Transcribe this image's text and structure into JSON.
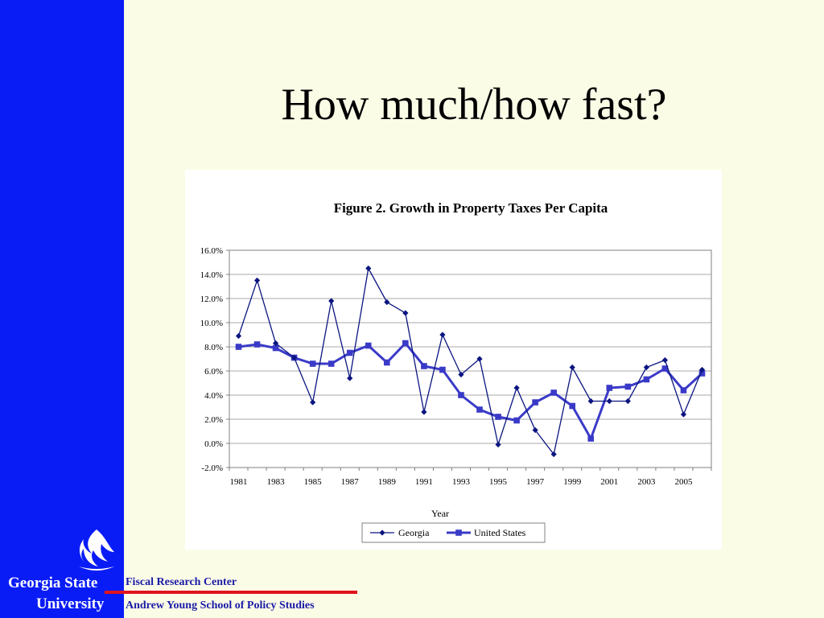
{
  "slide": {
    "title": "How much/how fast?"
  },
  "branding": {
    "university_line1": "Georgia State",
    "university_line2": "University",
    "center": "Fiscal Research Center",
    "school": "Andrew Young School of Policy Studies",
    "logo_icon": "gsu-flame-logo-icon",
    "sidebar_color": "#0a1cf5",
    "rule_color": "#e0141c",
    "footer_text_color": "#1a1aa8"
  },
  "chart_data": {
    "type": "line",
    "title": "Figure 2. Growth in Property Taxes Per Capita",
    "xlabel": "Year",
    "ylabel": "",
    "ylim": [
      -2.0,
      16.0
    ],
    "yticks": [
      "16.0%",
      "14.0%",
      "12.0%",
      "10.0%",
      "8.0%",
      "6.0%",
      "4.0%",
      "2.0%",
      "0.0%",
      "-2.0%"
    ],
    "xtick_labels": [
      "1981",
      "1983",
      "1985",
      "1987",
      "1989",
      "1991",
      "1993",
      "1995",
      "1997",
      "1999",
      "2001",
      "2003",
      "2005"
    ],
    "x": [
      1981,
      1982,
      1983,
      1984,
      1985,
      1986,
      1987,
      1988,
      1989,
      1990,
      1991,
      1992,
      1993,
      1994,
      1995,
      1996,
      1997,
      1998,
      1999,
      2000,
      2001,
      2002,
      2003,
      2004,
      2005,
      2006
    ],
    "grid": true,
    "legend_position": "bottom",
    "series": [
      {
        "name": "Georgia",
        "marker": "diamond",
        "color": "#0b1580",
        "values": [
          8.9,
          13.5,
          8.3,
          7.1,
          3.4,
          11.8,
          5.4,
          14.5,
          11.7,
          10.8,
          2.6,
          9.0,
          5.7,
          7.0,
          -0.1,
          4.6,
          1.1,
          -0.9,
          6.3,
          3.5,
          3.5,
          3.5,
          6.3,
          6.9,
          2.4,
          6.1
        ]
      },
      {
        "name": "United States",
        "marker": "square",
        "color": "#3a3ac8",
        "values": [
          8.0,
          8.2,
          7.9,
          7.1,
          6.6,
          6.6,
          7.5,
          8.1,
          6.7,
          8.3,
          6.4,
          6.1,
          4.0,
          2.8,
          2.2,
          1.9,
          3.4,
          4.2,
          3.1,
          0.4,
          4.6,
          4.7,
          5.3,
          6.2,
          4.4,
          5.8
        ]
      }
    ]
  }
}
